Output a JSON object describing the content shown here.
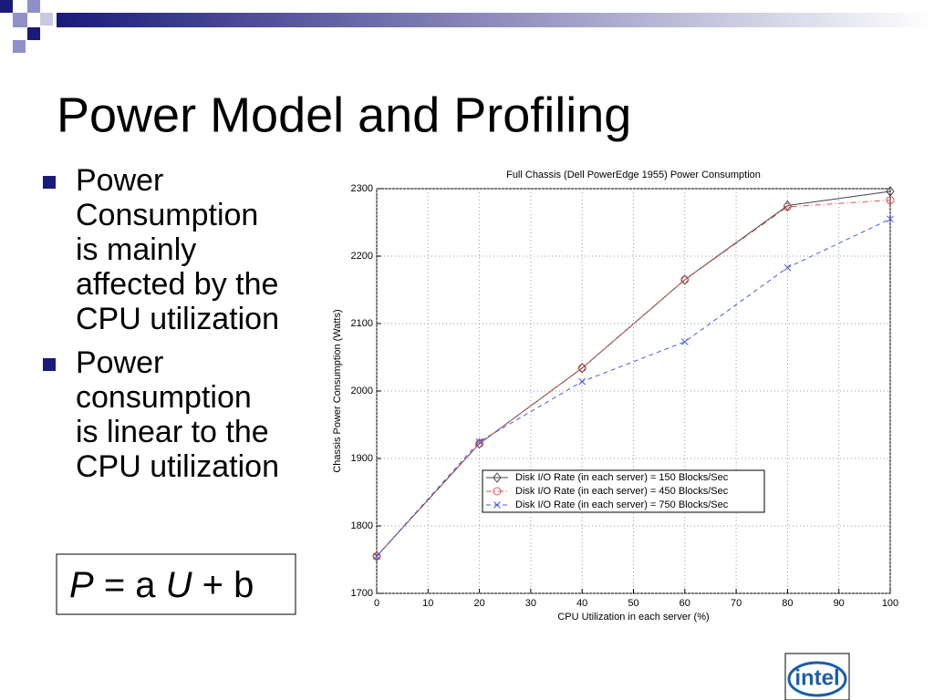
{
  "slide": {
    "title": "Power Model and Profiling",
    "bullets": [
      [
        "Power",
        "Consumption",
        "is mainly",
        "affected by the",
        "CPU utilization"
      ],
      [
        "Power",
        "consumption",
        "is linear to the",
        "CPU utilization"
      ]
    ],
    "formula": [
      "P",
      "= a",
      "U",
      "+ b"
    ],
    "logo": "intel"
  },
  "chart_data": {
    "type": "line",
    "title": "Full Chassis (Dell PowerEdge 1955) Power Consumption",
    "x_label": "CPU Utilization in each server (%)",
    "y_label": "Chassis Power Consumption (Watts)",
    "x": [
      0,
      20,
      40,
      60,
      80,
      100
    ],
    "series": [
      {
        "name": "Disk I/O Rate (in each server) = 150 Blocks/Sec",
        "color": "#444444",
        "marker": "diamond",
        "linestyle": "solid",
        "values": [
          1755,
          1922,
          2034,
          2165,
          2275,
          2296
        ]
      },
      {
        "name": "Disk I/O Rate (in each server) = 450 Blocks/Sec",
        "color": "#e05050",
        "marker": "circle",
        "linestyle": "dashdot",
        "values": [
          1755,
          1922,
          2034,
          2165,
          2273,
          2283
        ]
      },
      {
        "name": "Disk I/O Rate (in each server) = 750 Blocks/Sec",
        "color": "#4a5ae8",
        "marker": "x",
        "linestyle": "dashed",
        "values": [
          1755,
          1925,
          2014,
          2073,
          2183,
          2255
        ]
      }
    ],
    "xlim": [
      0,
      100
    ],
    "xticks": [
      0,
      10,
      20,
      30,
      40,
      50,
      60,
      70,
      80,
      90,
      100
    ],
    "ylim": [
      1700,
      2300
    ],
    "yticks": [
      1700,
      1800,
      1900,
      2000,
      2100,
      2200,
      2300
    ],
    "grid": true
  }
}
